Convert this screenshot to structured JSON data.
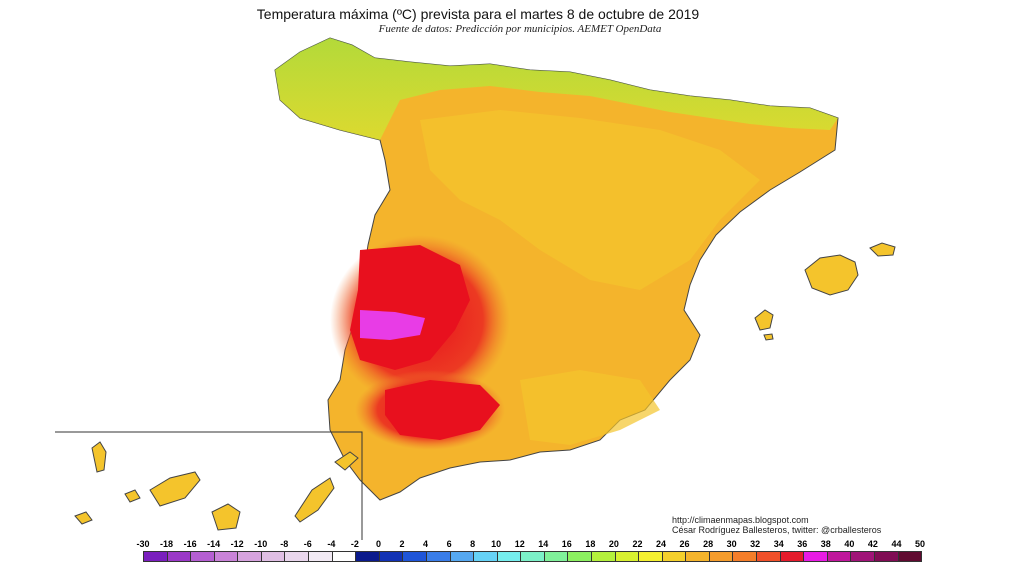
{
  "map": {
    "title": "Temperatura máxima (ºC) prevista para el martes 8 de octubre de 2019",
    "subtitle": "Fuente de datos: Predicción por municipios. AEMET OpenData",
    "credits": {
      "blog": "http://climaenmapas.blogspot.com",
      "author": "César Rodríguez Ballesteros, twitter: @crballesteros"
    }
  },
  "legend": {
    "labels": [
      "-30",
      "-18",
      "-16",
      "-14",
      "-12",
      "-10",
      "-8",
      "-6",
      "-4",
      "-2",
      "0",
      "2",
      "4",
      "6",
      "8",
      "10",
      "12",
      "14",
      "16",
      "18",
      "20",
      "22",
      "24",
      "26",
      "28",
      "30",
      "32",
      "34",
      "36",
      "38",
      "40",
      "42",
      "44",
      "50"
    ],
    "colors": [
      "#7a1fbe",
      "#9b39c8",
      "#b55fd2",
      "#c983d8",
      "#d6a3de",
      "#e0bfe4",
      "#e9d6ec",
      "#f2eaf4",
      "#ffffff",
      "#0b1a8c",
      "#1232b4",
      "#1f55d8",
      "#3a7de8",
      "#56a8f0",
      "#66d2f6",
      "#76eeee",
      "#7cf0c8",
      "#80f09a",
      "#8cf060",
      "#b4f03c",
      "#d8f030",
      "#f4f030",
      "#f4d02c",
      "#f4b42c",
      "#f49c2c",
      "#f47e2a",
      "#f0502a",
      "#e41c2c",
      "#e81ce4",
      "#c0189c",
      "#a01478",
      "#800c54",
      "#600a30"
    ]
  },
  "colors": {
    "sea": "#ffffff",
    "hot_core": "#e8101e",
    "extreme": "#e83ce6",
    "warm": "#f4a628",
    "mild": "#f4c828",
    "cool": "#b8e040"
  }
}
